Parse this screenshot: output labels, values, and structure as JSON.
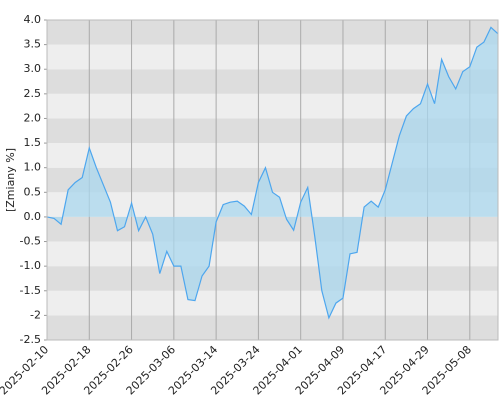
{
  "chart_data": {
    "type": "area",
    "y_label": "[Zmiany %]",
    "categories": [
      "2025-02-10",
      null,
      null,
      null,
      null,
      null,
      "2025-02-18",
      null,
      null,
      null,
      null,
      null,
      "2025-02-26",
      null,
      null,
      null,
      null,
      null,
      "2025-03-06",
      null,
      null,
      null,
      null,
      null,
      "2025-03-14",
      null,
      null,
      null,
      null,
      null,
      "2025-03-24",
      null,
      null,
      null,
      null,
      null,
      "2025-04-01",
      null,
      null,
      null,
      null,
      null,
      "2025-04-09",
      null,
      null,
      null,
      null,
      null,
      "2025-04-17",
      null,
      null,
      null,
      null,
      null,
      "2025-04-29",
      null,
      null,
      null,
      null,
      null,
      "2025-05-08",
      null,
      null,
      null,
      null
    ],
    "values": [
      0.0,
      -0.03,
      -0.15,
      0.55,
      0.7,
      0.8,
      1.4,
      1.0,
      0.65,
      0.3,
      -0.28,
      -0.2,
      0.28,
      -0.28,
      0.0,
      -0.35,
      -1.15,
      -0.7,
      -1.0,
      -1.0,
      -1.68,
      -1.7,
      -1.2,
      -1.0,
      -0.1,
      0.25,
      0.3,
      0.32,
      0.22,
      0.05,
      0.7,
      1.0,
      0.5,
      0.4,
      -0.05,
      -0.27,
      0.3,
      0.6,
      -0.4,
      -1.5,
      -2.05,
      -1.75,
      -1.65,
      -0.75,
      -0.72,
      0.2,
      0.32,
      0.2,
      0.55,
      1.1,
      1.65,
      2.05,
      2.2,
      2.3,
      2.7,
      2.3,
      3.2,
      2.85,
      2.6,
      2.95,
      3.05,
      3.45,
      3.55,
      3.85,
      3.72
    ],
    "color": "#4da6ee",
    "fill_color": "#a9d7ee",
    "ylim": [
      -2.5,
      4.0
    ],
    "yticks": [
      -2.5,
      -2.0,
      -1.5,
      {
        "value": -1,
        "label": "-1.0"
      },
      -0.5,
      {
        "value": 0,
        "label": "0.0"
      },
      0.5,
      {
        "value": 1,
        "label": "1.0"
      },
      1.5,
      {
        "value": 2,
        "label": "2.0"
      },
      2.5,
      {
        "value": 3,
        "label": "3.0"
      },
      3.5,
      {
        "value": 4,
        "label": "4.0"
      }
    ],
    "grid": true
  }
}
